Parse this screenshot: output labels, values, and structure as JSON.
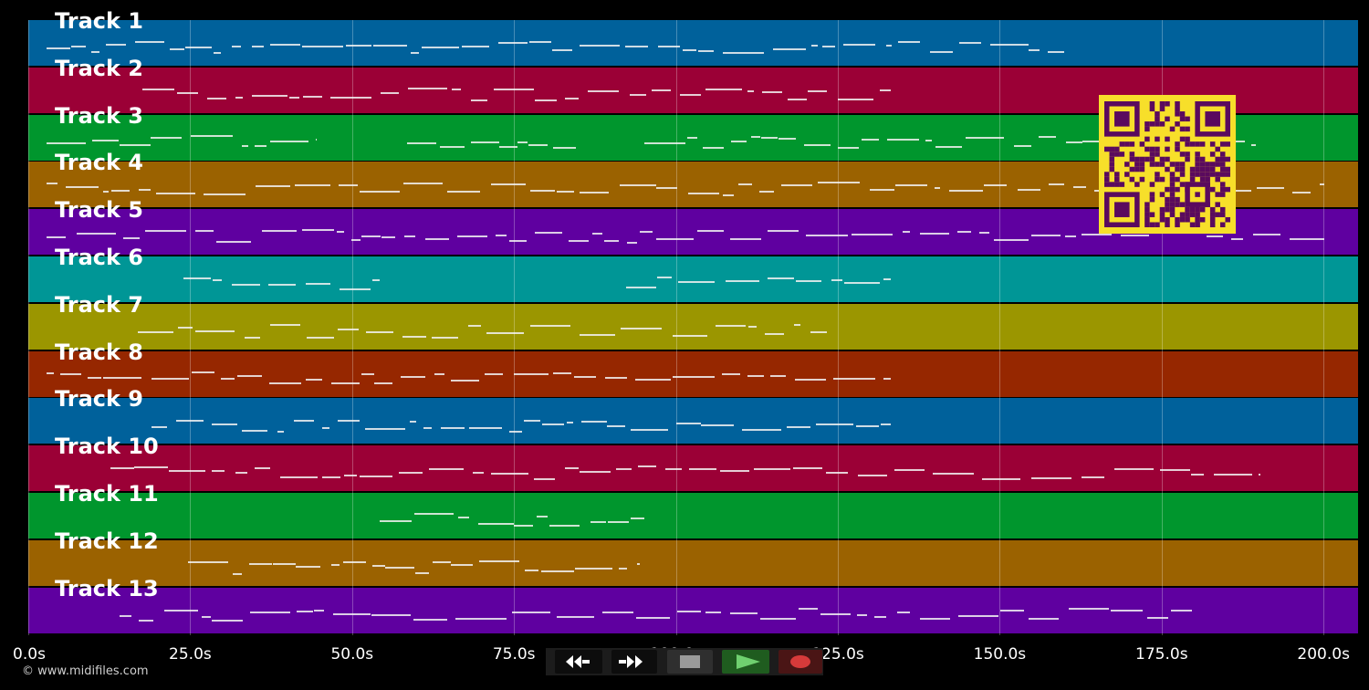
{
  "tracks": [
    {
      "label": "Track 1",
      "color": "#00619b"
    },
    {
      "label": "Track 2",
      "color": "#9b0036"
    },
    {
      "label": "Track 3",
      "color": "#00962d"
    },
    {
      "label": "Track 4",
      "color": "#9b6200"
    },
    {
      "label": "Track 5",
      "color": "#5f00a0"
    },
    {
      "label": "Track 6",
      "color": "#009696"
    },
    {
      "label": "Track 7",
      "color": "#9b9600"
    },
    {
      "label": "Track 8",
      "color": "#962700"
    },
    {
      "label": "Track 9",
      "color": "#00619b"
    },
    {
      "label": "Track 10",
      "color": "#9b0036"
    },
    {
      "label": "Track 11",
      "color": "#00962d"
    },
    {
      "label": "Track 12",
      "color": "#9b6200"
    },
    {
      "label": "Track 13",
      "color": "#5f00a0"
    }
  ],
  "timeline": {
    "ticks": [
      "0.0s",
      "25.0s",
      "50.0s",
      "75.0s",
      "100.0s",
      "125.0s",
      "150.0s",
      "175.0s",
      "200.0s"
    ]
  },
  "qr_colors": {
    "background": "#f7df2a",
    "modules": "#5a0a5e"
  },
  "copyright": "© www.midifiles.com",
  "transport": {
    "rewind_icon": "rewind-icon",
    "fast_forward_icon": "fast-forward-icon",
    "stop_icon": "stop-icon",
    "play_icon": "play-icon",
    "record_icon": "record-icon"
  }
}
